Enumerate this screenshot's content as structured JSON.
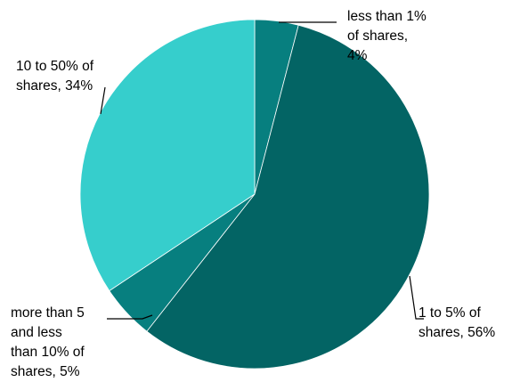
{
  "chart_data": {
    "type": "pie",
    "title": "",
    "start_angle_deg": 0,
    "direction": "clockwise",
    "slices": [
      {
        "label": "less than 1% of shares, 4%",
        "lines": [
          "less than 1%",
          "of shares,",
          "4%"
        ],
        "category": "less than 1% of shares",
        "value": 4,
        "color": "#077f7f"
      },
      {
        "label": "1 to 5% of shares, 56%",
        "lines": [
          "1 to 5% of",
          "shares, 56%"
        ],
        "category": "1 to 5% of shares",
        "value": 56,
        "color": "#036464"
      },
      {
        "label": "more than 5 and less than 10% of shares, 5%",
        "lines": [
          "more than 5",
          "and less",
          "than 10% of",
          "shares, 5%"
        ],
        "category": "more than 5 and less than 10% of shares",
        "value": 5,
        "color": "#077f7f"
      },
      {
        "label": "10 to 50% of shares, 34%",
        "lines": [
          "10 to 50% of",
          "shares, 34%"
        ],
        "category": "10 to 50% of shares",
        "value": 34,
        "color": "#36cecc"
      }
    ]
  }
}
